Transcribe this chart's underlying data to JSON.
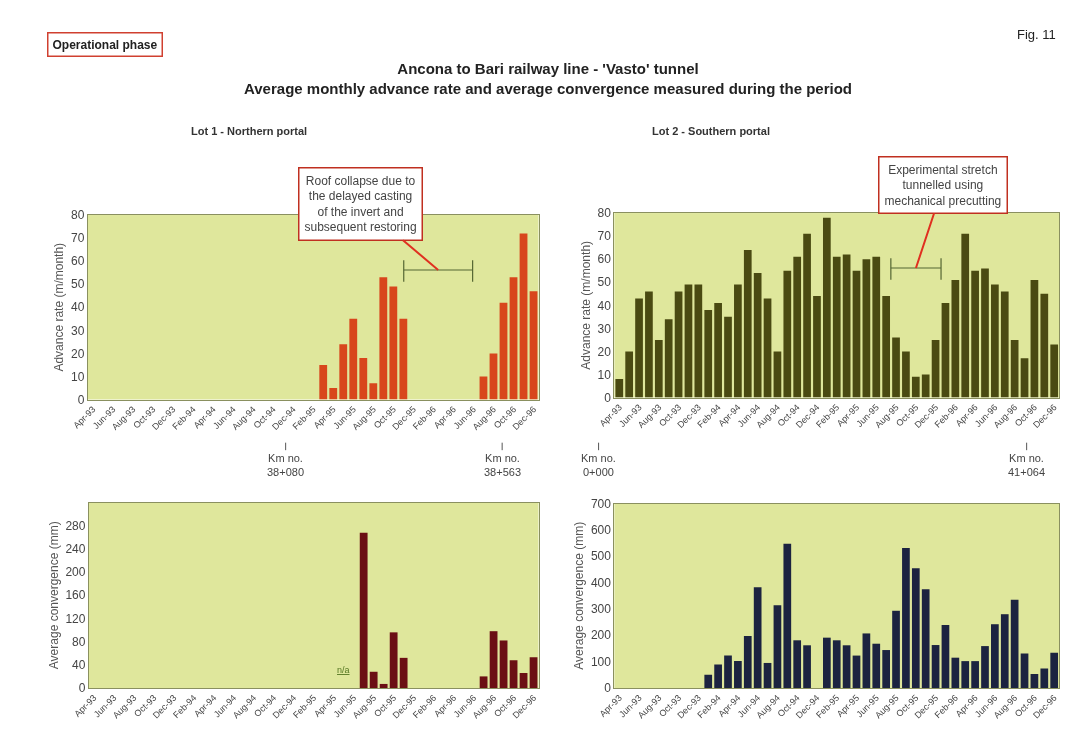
{
  "chart_data": [
    {
      "type": "bar",
      "title": "Ancona to Bari railway line - 'Vasto' tunnel\nAverage monthly advance rate and average convergence measured during the period",
      "subtitle": "Lot 1 - Northern portal",
      "ylabel": "Advance rate (m/month)",
      "categories": [
        "Apr-93",
        null,
        "Jun-93",
        null,
        "Aug-93",
        null,
        "Oct-93",
        null,
        "Dec-93",
        null,
        "Feb-94",
        null,
        "Apr-94",
        null,
        "Jun-94",
        null,
        "Aug-94",
        null,
        "Oct-94",
        null,
        "Dec-94",
        null,
        "Feb-95",
        null,
        "Apr-95",
        null,
        "Jun-95",
        null,
        "Aug-95",
        null,
        "Oct-95",
        null,
        "Dec-95",
        null,
        "Feb-96",
        null,
        "Apr-96",
        null,
        "Jun-96",
        null,
        "Aug-96",
        null,
        "Oct-96",
        null,
        "Dec-96"
      ],
      "values": [
        null,
        null,
        null,
        null,
        null,
        null,
        null,
        null,
        null,
        null,
        null,
        null,
        null,
        null,
        null,
        null,
        null,
        null,
        null,
        null,
        null,
        null,
        null,
        15,
        5,
        24,
        35,
        18,
        7,
        53,
        49,
        35,
        null,
        null,
        null,
        null,
        null,
        null,
        null,
        10,
        20,
        42,
        53,
        72,
        47
      ],
      "color": "#d8461c",
      "ylim": [
        0,
        80
      ],
      "yticks": [
        0,
        10,
        20,
        30,
        40,
        50,
        60,
        70,
        80
      ],
      "annotations": [
        "Operational phase",
        "Fig. 11",
        "Roof collapse due to\nthe delayed casting\nof the invert and\nsubsequent restoring",
        "Km no.\n38+080",
        "Km no.\n38+563"
      ]
    },
    {
      "type": "bar",
      "subtitle": "Lot 2 - Southern portal",
      "ylabel": "Advance rate (m/month)",
      "categories": [
        "Apr-93",
        null,
        "Jun-93",
        null,
        "Aug-93",
        null,
        "Oct-93",
        null,
        "Dec-93",
        null,
        "Feb-94",
        null,
        "Apr-94",
        null,
        "Jun-94",
        null,
        "Aug-94",
        null,
        "Oct-94",
        null,
        "Dec-94",
        null,
        "Feb-95",
        null,
        "Apr-95",
        null,
        "Jun-95",
        null,
        "Aug-95",
        null,
        "Oct-95",
        null,
        "Dec-95",
        null,
        "Feb-96",
        null,
        "Apr-96",
        null,
        "Jun-96",
        null,
        "Aug-96",
        null,
        "Oct-96",
        null,
        "Dec-96"
      ],
      "values": [
        8,
        20,
        43,
        46,
        25,
        34,
        46,
        49,
        49,
        38,
        41,
        35,
        49,
        64,
        54,
        43,
        20,
        55,
        61,
        71,
        44,
        78,
        61,
        62,
        55,
        60,
        61,
        44,
        26,
        20,
        9,
        10,
        25,
        41,
        51,
        71,
        55,
        56,
        49,
        46,
        25,
        17,
        51,
        45,
        23
      ],
      "color": "#4a4a12",
      "ylim": [
        0,
        80
      ],
      "yticks": [
        0,
        10,
        20,
        30,
        40,
        50,
        60,
        70,
        80
      ],
      "annotations": [
        "Experimental stretch\ntunnelled using\nmechanical precutting",
        "Km no.\n0+000",
        "Km no.\n41+064"
      ]
    },
    {
      "type": "bar",
      "ylabel": "Average convergence (mm)",
      "categories": [
        "Apr-93",
        null,
        "Jun-93",
        null,
        "Aug-93",
        null,
        "Oct-93",
        null,
        "Dec-93",
        null,
        "Feb-94",
        null,
        "Apr-94",
        null,
        "Jun-94",
        null,
        "Aug-94",
        null,
        "Oct-94",
        null,
        "Dec-94",
        null,
        "Feb-95",
        null,
        "Apr-95",
        null,
        "Jun-95",
        null,
        "Aug-95",
        null,
        "Oct-95",
        null,
        "Dec-95",
        null,
        "Feb-96",
        null,
        "Apr-96",
        null,
        "Jun-96",
        null,
        "Aug-96",
        null,
        "Oct-96",
        null,
        "Dec-96"
      ],
      "values": [
        null,
        null,
        null,
        null,
        null,
        null,
        null,
        null,
        null,
        null,
        null,
        null,
        null,
        null,
        null,
        null,
        null,
        null,
        null,
        null,
        null,
        null,
        null,
        null,
        null,
        null,
        null,
        268,
        28,
        7,
        96,
        52,
        null,
        null,
        null,
        null,
        null,
        null,
        null,
        20,
        98,
        82,
        48,
        26,
        53
      ],
      "color": "#6b0f14",
      "ylim": [
        0,
        320
      ],
      "yticks": [
        0,
        40,
        80,
        120,
        160,
        200,
        240,
        280
      ],
      "annotations": [
        "n/a"
      ]
    },
    {
      "type": "bar",
      "ylabel": "Average convergence (mm)",
      "categories": [
        "Apr-93",
        null,
        "Jun-93",
        null,
        "Aug-93",
        null,
        "Oct-93",
        null,
        "Dec-93",
        null,
        "Feb-94",
        null,
        "Apr-94",
        null,
        "Jun-94",
        null,
        "Aug-94",
        null,
        "Oct-94",
        null,
        "Dec-94",
        null,
        "Feb-95",
        null,
        "Apr-95",
        null,
        "Jun-95",
        null,
        "Aug-95",
        null,
        "Oct-95",
        null,
        "Dec-95",
        null,
        "Feb-96",
        null,
        "Apr-96",
        null,
        "Jun-96",
        null,
        "Aug-96",
        null,
        "Oct-96",
        null,
        "Dec-96"
      ],
      "values": [
        null,
        null,
        null,
        null,
        null,
        null,
        null,
        null,
        null,
        50,
        89,
        123,
        102,
        197,
        382,
        95,
        314,
        547,
        181,
        162,
        null,
        191,
        181,
        162,
        123,
        207,
        168,
        144,
        293,
        531,
        454,
        375,
        163,
        239,
        115,
        102,
        102,
        159,
        242,
        280,
        335,
        131,
        53,
        74,
        134
      ],
      "color": "#1c2340",
      "ylim": [
        0,
        700
      ],
      "yticks": [
        0,
        100,
        200,
        300,
        400,
        500,
        600,
        700
      ]
    }
  ]
}
